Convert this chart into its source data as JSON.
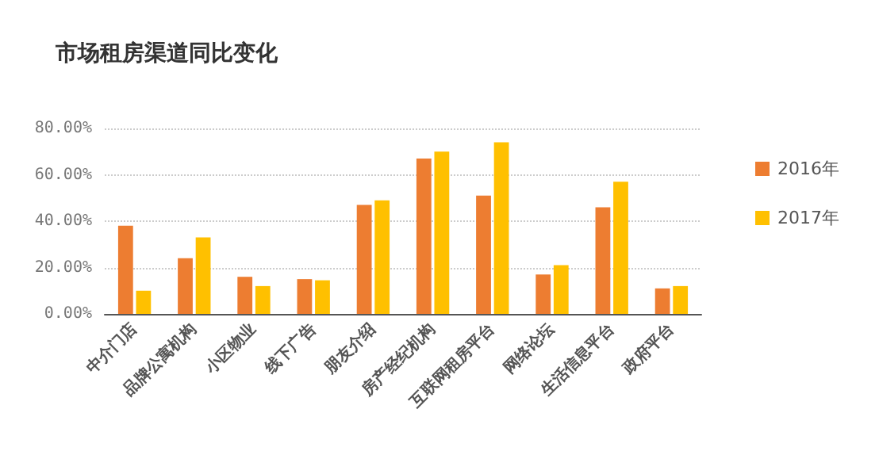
{
  "chart_data": {
    "type": "bar",
    "title": "市场租房渠道同比变化",
    "categories": [
      "中介门店",
      "品牌公寓机构",
      "小区物业",
      "线下广告",
      "朋友介绍",
      "房产经纪机构",
      "互联网租房平台",
      "网络论坛",
      "生活信息平台",
      "政府平台"
    ],
    "series": [
      {
        "name": "2016年",
        "color": "#ed7d31",
        "values": [
          38,
          24,
          16,
          15,
          47,
          67,
          51,
          17,
          46,
          11
        ]
      },
      {
        "name": "2017年",
        "color": "#ffc000",
        "values": [
          10,
          33,
          12,
          14.5,
          49,
          70,
          74,
          21,
          57,
          12
        ]
      }
    ],
    "ylim": [
      0,
      80
    ],
    "yticks": [
      {
        "value": 0,
        "label": "0.00%"
      },
      {
        "value": 20,
        "label": "20.00%"
      },
      {
        "value": 40,
        "label": "40.00%"
      },
      {
        "value": 60,
        "label": "60.00%"
      },
      {
        "value": 80,
        "label": "80.00%"
      }
    ],
    "grid": "y",
    "legend": "right"
  }
}
